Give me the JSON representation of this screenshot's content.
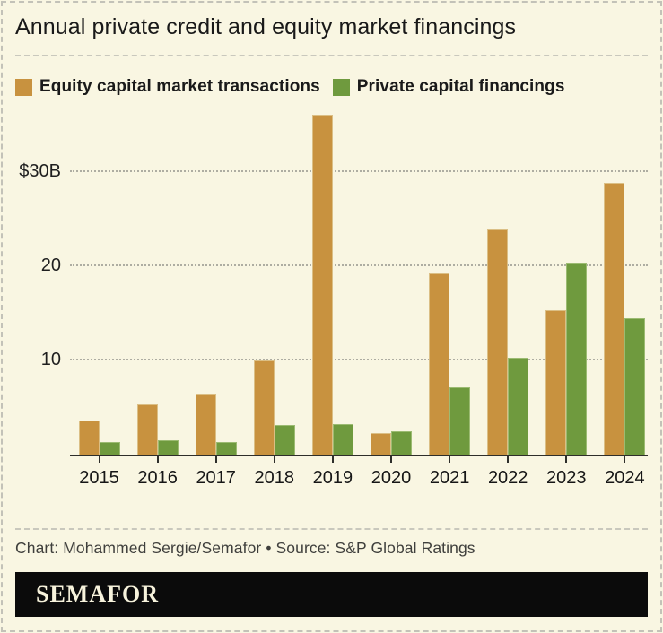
{
  "title": "Annual private credit and equity market financings",
  "legend": {
    "items": [
      {
        "label": "Equity capital market transactions",
        "color": "#C8923F"
      },
      {
        "label": "Private capital financings",
        "color": "#6F9A3E"
      }
    ]
  },
  "footer": {
    "credit": "Chart: Mohammed Sergie/Semafor • Source: S&P Global Ratings",
    "logo": "SEMAFOR"
  },
  "colors": {
    "background": "#F9F6E2",
    "equity_bar": "#C8923F",
    "equity_bar_edge": "#DBBF85",
    "private_bar": "#6F9A3E",
    "private_bar_edge": "#9CBB72",
    "axis": "#2e2e2a",
    "gridline": "#aeada2",
    "logo_background": "#0b0b0b",
    "logo_text": "#F7F3DC"
  },
  "chart_data": {
    "type": "bar",
    "title": "Annual private credit and equity market financings",
    "categories": [
      "2015",
      "2016",
      "2017",
      "2018",
      "2019",
      "2020",
      "2021",
      "2022",
      "2023",
      "2024"
    ],
    "series": [
      {
        "name": "Equity capital market transactions",
        "color": "#C8923F",
        "values": [
          3.6,
          5.3,
          6.5,
          10.0,
          36.1,
          2.3,
          19.2,
          24.0,
          15.3,
          28.9
        ]
      },
      {
        "name": "Private capital financings",
        "color": "#6F9A3E",
        "values": [
          1.3,
          1.5,
          1.3,
          3.1,
          3.2,
          2.5,
          7.1,
          10.3,
          20.4,
          14.5
        ]
      }
    ],
    "y_ticks": [
      {
        "value": 10,
        "label": "10"
      },
      {
        "value": 20,
        "label": "20"
      },
      {
        "value": 30,
        "label": "$30B"
      }
    ],
    "ylim": [
      0,
      37
    ],
    "unit": "billions USD",
    "grid": "horizontal dotted",
    "legend_position": "top-left"
  }
}
